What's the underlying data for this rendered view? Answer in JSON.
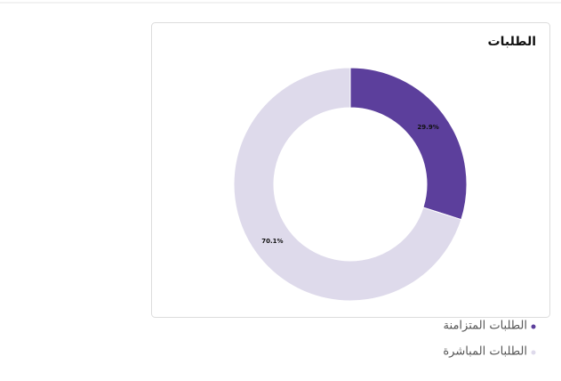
{
  "chart_data": {
    "type": "pie",
    "title": "الطلبات",
    "categories": [
      "الطلبات المتزامنة",
      "الطلبات المباشرة"
    ],
    "values": [
      29.9,
      70.1
    ],
    "value_labels": [
      "29.9%",
      "70.1%"
    ],
    "colors": [
      "#5c3f9c",
      "#dedaeb"
    ],
    "donut": true
  }
}
